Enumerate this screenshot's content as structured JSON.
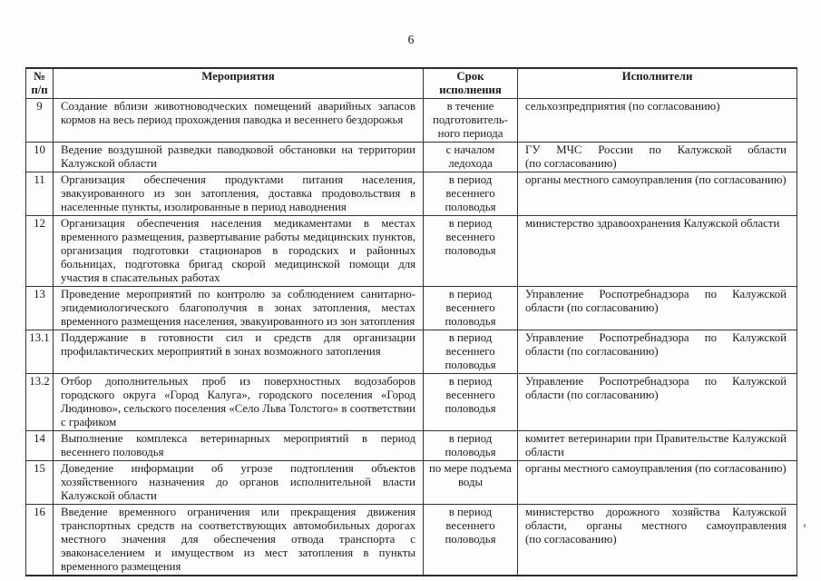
{
  "page": {
    "number": "6"
  },
  "table": {
    "headers": {
      "num": "№\nп/п",
      "activity": "Мероприятия",
      "term": "Срок\nисполнения",
      "executors": "Исполнители"
    },
    "rows": [
      {
        "num": "9",
        "activity": "Создание вблизи животноводческих помещений аварийных запасов кормов на весь период прохождения паводка и весеннего бездорожья",
        "term": "в течение\nподготовитель-\nного периода",
        "executors": "сельхозпредприятия (по согласованию)"
      },
      {
        "num": "10",
        "activity": "Ведение воздушной разведки паводковой обстановки на территории Калужской области",
        "term": "с началом\nледохода",
        "executors": "ГУ МЧС России по Калужской области (по согласованию)"
      },
      {
        "num": "11",
        "activity": "Организация обеспечения продуктами питания населения, эвакуированного из зон затопления, доставка продовольствия в населенные пункты, изолированные в период наводнения",
        "term": "в период\nвесеннего\nполоводья",
        "executors": "органы местного самоуправления (по согласованию)"
      },
      {
        "num": "12",
        "activity": "Организация обеспечения населения медикаментами в местах временного размещения, развертывание работы медицинских пунктов, организация подготовки стационаров в городских и районных больницах, подготовка бригад скорой медицинской помощи для участия в спасательных работах",
        "term": "в период\nвесеннего\nполоводья",
        "executors": "министерство здравоохранения Калужской области"
      },
      {
        "num": "13",
        "activity": "Проведение мероприятий по контролю за соблюдением санитарно-эпидемиологического благополучия в зонах затопления, местах временного размещения населения, эвакуированного из зон затопления",
        "term": "в период\nвесеннего\nполоводья",
        "executors": "Управление Роспотребнадзора по Калужской области (по согласованию)"
      },
      {
        "num": "13.1",
        "activity": "Поддержание в готовности сил и средств для организации профилактических мероприятий в зонах возможного затопления",
        "term": "в период\nвесеннего\nполоводья",
        "executors": "Управление Роспотребнадзора по Калужской области (по согласованию)"
      },
      {
        "num": "13.2",
        "activity": "Отбор дополнительных проб из поверхностных водозаборов городского округа «Город Калуга», городского поселения «Город Людиново», сельского поселения «Село Льва Толстого» в соответствии с графиком",
        "term": "в период\nвесеннего\nполоводья",
        "executors": "Управление Роспотребнадзора по Калужской области (по согласованию)"
      },
      {
        "num": "14",
        "activity": "Выполнение комплекса ветеринарных мероприятий в период весеннего половодья",
        "term": "в период\nполоводья",
        "executors": "комитет ветеринарии при Правительстве Калужской области"
      },
      {
        "num": "15",
        "activity": "Доведение информации об угрозе подтопления объектов хозяйственного назначения до органов исполнительной власти Калужской области",
        "term": "по мере подъема\nводы",
        "executors": "органы местного самоуправления (по согласованию)"
      },
      {
        "num": "16",
        "activity": "Введение временного ограничения или прекращения движения транспортных средств на соответствующих автомобильных дорогах местного значения для обеспечения отвода транспорта с эваконаселением и имуществом из мест затопления в пункты временного размещения",
        "term": "в период\nвесеннего\nполоводья",
        "executors": "министерство дорожного хозяйства Калужской области, органы местного самоуправления (по согласованию)"
      }
    ]
  }
}
